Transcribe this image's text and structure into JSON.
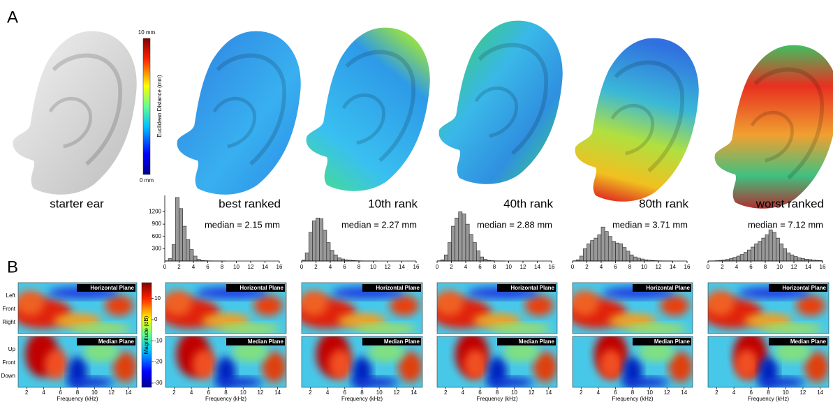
{
  "panel_a": {
    "label": "A",
    "starter_caption": "starter ear",
    "colorbar": {
      "max_label": "10 mm",
      "min_label": "0 mm",
      "title": "Euclidean Distance (mm)"
    }
  },
  "chart_data": [
    {
      "type": "histogram",
      "title": "best ranked",
      "annotation": "median = 2.15 mm",
      "color": "#999999",
      "bins": [
        0,
        0.5,
        1,
        1.5,
        2,
        2.5,
        3,
        3.5,
        4,
        4.5,
        5,
        5.5,
        6,
        6.5,
        7,
        7.5,
        8,
        8.5,
        9,
        9.5,
        10,
        10.5,
        11,
        11.5,
        12,
        12.5,
        13,
        13.5,
        14,
        14.5,
        15,
        15.5,
        16
      ],
      "values": [
        5,
        60,
        400,
        1550,
        1280,
        850,
        520,
        280,
        120,
        40,
        15,
        8,
        5,
        3,
        2,
        1,
        1,
        0,
        0,
        0,
        0,
        0,
        0,
        0,
        0,
        0,
        0,
        0,
        0,
        0,
        0,
        0
      ],
      "xlim": [
        0,
        16
      ],
      "xticks": [
        0,
        2,
        4,
        6,
        8,
        10,
        12,
        14,
        16
      ],
      "ylim": [
        0,
        1600
      ],
      "yticks": [
        300,
        600,
        900,
        1200
      ]
    },
    {
      "type": "histogram",
      "title": "10th rank",
      "annotation": "median = 2.27 mm",
      "color": "#999999",
      "bins": [
        0,
        0.5,
        1,
        1.5,
        2,
        2.5,
        3,
        3.5,
        4,
        4.5,
        5,
        5.5,
        6,
        6.5,
        7,
        7.5,
        8,
        8.5,
        9,
        9.5,
        10,
        10.5,
        11,
        11.5,
        12,
        12.5,
        13,
        13.5,
        14,
        14.5,
        15,
        15.5,
        16
      ],
      "values": [
        20,
        200,
        700,
        980,
        1050,
        1030,
        750,
        450,
        260,
        150,
        80,
        50,
        30,
        20,
        12,
        8,
        5,
        3,
        2,
        1,
        1,
        0,
        0,
        0,
        0,
        0,
        0,
        0,
        0,
        0,
        0,
        0
      ],
      "xlim": [
        0,
        16
      ],
      "xticks": [
        0,
        2,
        4,
        6,
        8,
        10,
        12,
        14,
        16
      ],
      "ylim": [
        0,
        1600
      ]
    },
    {
      "type": "histogram",
      "title": "40th rank",
      "annotation": "median = 2.88 mm",
      "color": "#999999",
      "bins": [
        0,
        0.5,
        1,
        1.5,
        2,
        2.5,
        3,
        3.5,
        4,
        4.5,
        5,
        5.5,
        6,
        6.5,
        7,
        7.5,
        8,
        8.5,
        9,
        9.5,
        10,
        10.5,
        11,
        11.5,
        12,
        12.5,
        13,
        13.5,
        14,
        14.5,
        15,
        15.5,
        16
      ],
      "values": [
        5,
        30,
        150,
        450,
        850,
        1050,
        1200,
        1150,
        900,
        650,
        450,
        250,
        100,
        40,
        15,
        8,
        4,
        2,
        1,
        0,
        0,
        0,
        0,
        0,
        0,
        0,
        0,
        0,
        0,
        0,
        0,
        0
      ],
      "xlim": [
        0,
        16
      ],
      "xticks": [
        0,
        2,
        4,
        6,
        8,
        10,
        12,
        14,
        16
      ],
      "ylim": [
        0,
        1600
      ]
    },
    {
      "type": "histogram",
      "title": "80th rank",
      "annotation": "median = 3.71 mm",
      "color": "#999999",
      "bins": [
        0,
        0.5,
        1,
        1.5,
        2,
        2.5,
        3,
        3.5,
        4,
        4.5,
        5,
        5.5,
        6,
        6.5,
        7,
        7.5,
        8,
        8.5,
        9,
        9.5,
        10,
        10.5,
        11,
        11.5,
        12,
        12.5,
        13,
        13.5,
        14,
        14.5,
        15,
        15.5,
        16
      ],
      "values": [
        5,
        30,
        120,
        300,
        420,
        500,
        560,
        640,
        830,
        720,
        600,
        480,
        440,
        420,
        330,
        240,
        150,
        100,
        70,
        50,
        30,
        20,
        12,
        8,
        5,
        3,
        2,
        1,
        0,
        0,
        0,
        0
      ],
      "xlim": [
        0,
        16
      ],
      "xticks": [
        0,
        2,
        4,
        6,
        8,
        10,
        12,
        14,
        16
      ],
      "ylim": [
        0,
        1600
      ]
    },
    {
      "type": "histogram",
      "title": "worst ranked",
      "annotation": "median = 7.12 mm",
      "color": "#999999",
      "bins": [
        0,
        0.5,
        1,
        1.5,
        2,
        2.5,
        3,
        3.5,
        4,
        4.5,
        5,
        5.5,
        6,
        6.5,
        7,
        7.5,
        8,
        8.5,
        9,
        9.5,
        10,
        10.5,
        11,
        11.5,
        12,
        12.5,
        13,
        13.5,
        14,
        14.5,
        15,
        15.5,
        16
      ],
      "values": [
        2,
        4,
        8,
        15,
        25,
        40,
        60,
        90,
        120,
        160,
        210,
        270,
        340,
        420,
        480,
        560,
        640,
        760,
        700,
        560,
        420,
        300,
        200,
        150,
        110,
        80,
        60,
        45,
        35,
        25,
        15,
        10
      ],
      "xlim": [
        0,
        16
      ],
      "xticks": [
        0,
        2,
        4,
        6,
        8,
        10,
        12,
        14,
        16
      ],
      "ylim": [
        0,
        1600
      ]
    }
  ],
  "panel_b": {
    "label": "B",
    "top_plane": "Horizontal Plane",
    "bottom_plane": "Median Plane",
    "top_labels": [
      "Left",
      "Front",
      "Right"
    ],
    "bottom_labels": [
      "Up",
      "Front",
      "Down"
    ],
    "xlabel": "Frequency (kHz)",
    "xlim": [
      1,
      15
    ],
    "xticks": [
      2,
      4,
      6,
      8,
      10,
      12,
      14
    ],
    "colorbar": {
      "title": "Magnitude (dB)",
      "clim": [
        -32,
        17.5
      ],
      "ticks": [
        10,
        0,
        -10,
        -20,
        -30
      ]
    }
  }
}
